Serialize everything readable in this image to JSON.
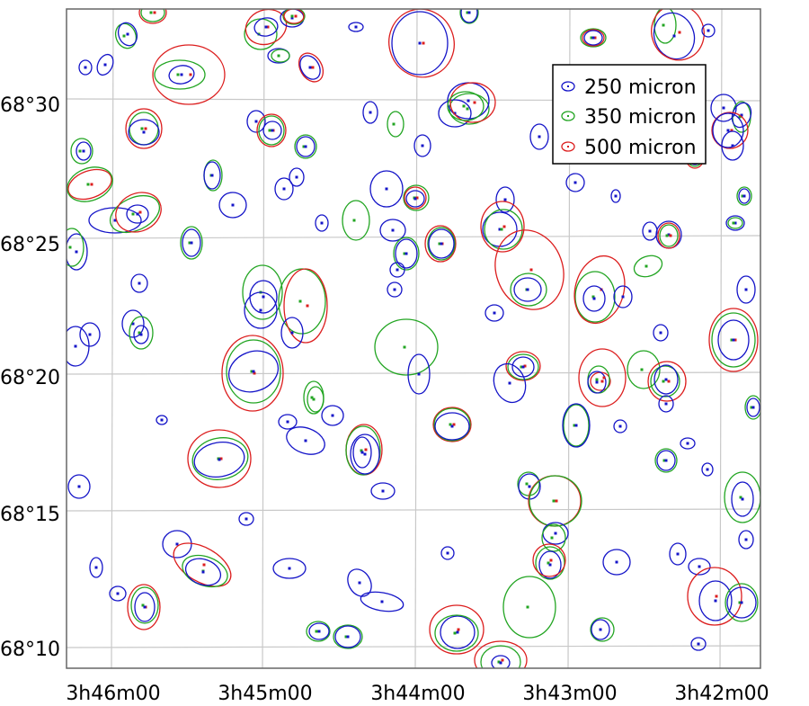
{
  "chart_data": {
    "type": "scatter",
    "title": "",
    "xlabel": "",
    "ylabel": "",
    "xlim": [
      "3h46m15",
      "3h41m45"
    ],
    "ylim": [
      "68°09'",
      "68°33'"
    ],
    "x_ticks": [
      "3h46m00",
      "3h45m00",
      "3h44m00",
      "3h43m00",
      "3h42m00"
    ],
    "y_ticks": [
      "68°10",
      "68°15",
      "68°20",
      "68°25",
      "68°30"
    ],
    "grid": true,
    "legend_position": "top-right",
    "series": [
      {
        "name": "250 micron",
        "color": "#1414c8",
        "points": [
          {
            "ra": "3h46m00",
            "dec": "68°22'"
          },
          {
            "ra": "3h45m36",
            "dec": "68°31'"
          },
          {
            "ra": "3h45m50",
            "dec": "68°28'"
          },
          {
            "ra": "3h45m12",
            "dec": "68°22'"
          },
          {
            "ra": "3h45m07",
            "dec": "68°20'"
          },
          {
            "ra": "3h44m30",
            "dec": "68°17'"
          },
          {
            "ra": "3h44m00",
            "dec": "68°32'"
          },
          {
            "ra": "3h43m30",
            "dec": "68°19'"
          },
          {
            "ra": "3h42m10",
            "dec": "68°21'"
          },
          {
            "ra": "3h42m05",
            "dec": "68°12'"
          },
          {
            "ra": "3h43m20",
            "dec": "68°13'"
          },
          {
            "ra": "3h42m55",
            "dec": "68°32'"
          }
        ]
      },
      {
        "name": "350 micron",
        "color": "#22a522",
        "points": [
          {
            "ra": "3h45m33",
            "dec": "68°31'"
          },
          {
            "ra": "3h44m22",
            "dec": "68°25'"
          },
          {
            "ra": "3h44m05",
            "dec": "68°21'"
          },
          {
            "ra": "3h43m10",
            "dec": "68°11'"
          },
          {
            "ra": "3h42m10",
            "dec": "68°15'"
          },
          {
            "ra": "3h43m15",
            "dec": "68°23'"
          }
        ]
      },
      {
        "name": "500 micron",
        "color": "#dc1e1e",
        "points": [
          {
            "ra": "3h45m28",
            "dec": "68°31'"
          },
          {
            "ra": "3h44m00",
            "dec": "68°32'"
          },
          {
            "ra": "3h43m15",
            "dec": "68°24'"
          },
          {
            "ra": "3h42m05",
            "dec": "68°21'"
          },
          {
            "ra": "3h45m07",
            "dec": "68°20'"
          },
          {
            "ra": "3h45m33",
            "dec": "68°17'"
          }
        ]
      }
    ]
  }
}
